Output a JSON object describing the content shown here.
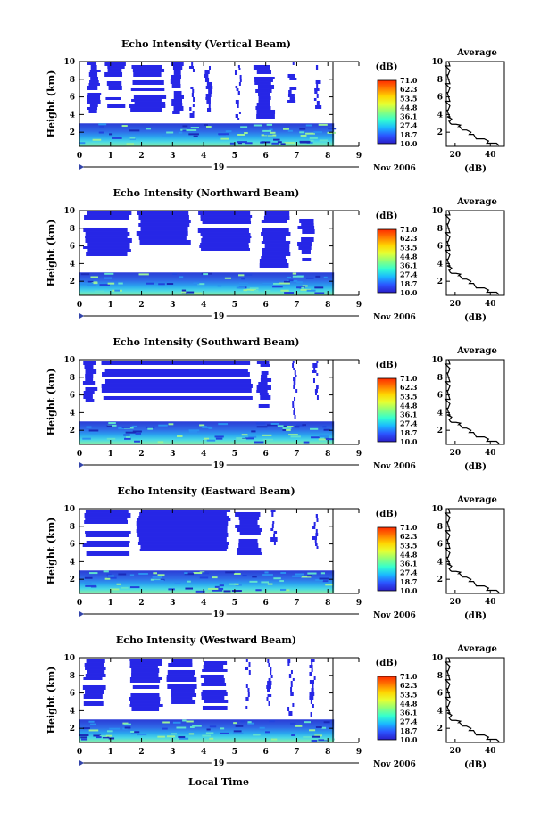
{
  "figure": {
    "colorbar_unit": "(dB)",
    "colorbar_ticks": [
      "71.0",
      "62.3",
      "53.5",
      "44.8",
      "36.1",
      "27.4",
      "18.7",
      "10.0"
    ],
    "colorbar_colors": [
      "#ff2a00",
      "#ff7a00",
      "#ffd400",
      "#e6ff33",
      "#8cff7a",
      "#33ffd0",
      "#1ab8ff",
      "#2b54ff",
      "#2a1ec8"
    ],
    "date_label": "Nov 2006",
    "day_label": "19",
    "xlabel": "Local Time",
    "colors": {
      "weak_echo": "#2626e6",
      "axis": "#000000"
    }
  },
  "chart_data": [
    {
      "type": "heatmap",
      "title": "Echo Intensity (Vertical Beam)",
      "ylabel": "Height (km)",
      "x_ticks": [
        "0",
        "1",
        "2",
        "3",
        "4",
        "5",
        "6",
        "7",
        "8",
        "9"
      ],
      "y_ticks": [
        "2",
        "4",
        "6",
        "8",
        "10"
      ],
      "xlim": [
        0,
        9
      ],
      "ylim": [
        0.4,
        10
      ],
      "boundary_layer_top_km": 3.0,
      "echo_columns": [
        [
          0.2,
          0.7
        ],
        [
          0.8,
          1.5
        ],
        [
          1.6,
          2.8
        ],
        [
          2.9,
          3.4
        ],
        [
          3.5,
          3.7
        ],
        [
          4.0,
          4.3
        ],
        [
          5.0,
          5.2
        ],
        [
          5.6,
          6.3
        ],
        [
          6.7,
          7.0
        ],
        [
          7.5,
          7.8
        ]
      ],
      "average_profile": {
        "title": "Average",
        "xlabel": "(dB)",
        "x_ticks": [
          "20",
          "40"
        ],
        "xlim": [
          15,
          48
        ],
        "y_ticks": [
          "2",
          "4",
          "6",
          "8",
          "10"
        ],
        "ylim": [
          0.4,
          10
        ],
        "height_km": [
          0.5,
          1.0,
          1.5,
          2.0,
          2.5,
          2.8,
          3.0,
          3.5,
          4.0,
          5.0,
          6.0,
          7.0,
          8.0,
          9.0,
          10.0
        ],
        "db": [
          45,
          38,
          32,
          28,
          24,
          22,
          18,
          17,
          17,
          16,
          17,
          16,
          17,
          16,
          17
        ]
      }
    },
    {
      "type": "heatmap",
      "title": "Echo Intensity (Northward Beam)",
      "ylabel": "Height (km)",
      "x_ticks": [
        "0",
        "1",
        "2",
        "3",
        "4",
        "5",
        "6",
        "7",
        "8",
        "9"
      ],
      "y_ticks": [
        "2",
        "4",
        "6",
        "8",
        "10"
      ],
      "xlim": [
        0,
        9
      ],
      "ylim": [
        0.4,
        10
      ],
      "boundary_layer_top_km": 3.0,
      "echo_columns": [
        [
          0.1,
          1.7
        ],
        [
          1.8,
          3.6
        ],
        [
          3.8,
          5.6
        ],
        [
          5.8,
          6.8
        ],
        [
          7.0,
          7.6
        ]
      ],
      "average_profile": {
        "title": "Average",
        "xlabel": "(dB)",
        "x_ticks": [
          "20",
          "40"
        ],
        "xlim": [
          15,
          48
        ],
        "y_ticks": [
          "2",
          "4",
          "6",
          "8",
          "10"
        ],
        "ylim": [
          0.4,
          10
        ],
        "height_km": [
          0.5,
          1.0,
          1.5,
          2.0,
          2.5,
          2.8,
          3.0,
          3.5,
          4.0,
          5.0,
          6.0,
          7.0,
          8.0,
          9.0,
          10.0
        ],
        "db": [
          45,
          38,
          32,
          28,
          24,
          22,
          18,
          17,
          17,
          16,
          17,
          16,
          17,
          16,
          17
        ]
      }
    },
    {
      "type": "heatmap",
      "title": "Echo Intensity (Southward Beam)",
      "ylabel": "Height (km)",
      "x_ticks": [
        "0",
        "1",
        "2",
        "3",
        "4",
        "5",
        "6",
        "7",
        "8",
        "9"
      ],
      "y_ticks": [
        "2",
        "4",
        "6",
        "8",
        "10"
      ],
      "xlim": [
        0,
        9
      ],
      "ylim": [
        0.4,
        10
      ],
      "boundary_layer_top_km": 3.0,
      "echo_columns": [
        [
          0.1,
          0.6
        ],
        [
          0.7,
          5.6
        ],
        [
          5.7,
          6.2
        ],
        [
          6.8,
          7.0
        ],
        [
          7.5,
          7.7
        ]
      ],
      "average_profile": {
        "title": "Average",
        "xlabel": "(dB)",
        "x_ticks": [
          "20",
          "40"
        ],
        "xlim": [
          15,
          48
        ],
        "y_ticks": [
          "2",
          "4",
          "6",
          "8",
          "10"
        ],
        "ylim": [
          0.4,
          10
        ],
        "height_km": [
          0.5,
          1.0,
          1.5,
          2.0,
          2.5,
          2.8,
          3.0,
          3.5,
          4.0,
          5.0,
          6.0,
          7.0,
          8.0,
          9.0,
          10.0
        ],
        "db": [
          45,
          38,
          32,
          28,
          24,
          22,
          18,
          17,
          17,
          16,
          17,
          16,
          17,
          16,
          17
        ]
      }
    },
    {
      "type": "heatmap",
      "title": "Echo Intensity (Eastward Beam)",
      "ylabel": "Height (km)",
      "x_ticks": [
        "0",
        "1",
        "2",
        "3",
        "4",
        "5",
        "6",
        "7",
        "8",
        "9"
      ],
      "y_ticks": [
        "2",
        "4",
        "6",
        "8",
        "10"
      ],
      "xlim": [
        0,
        9
      ],
      "ylim": [
        0.4,
        10
      ],
      "boundary_layer_top_km": 3.0,
      "echo_columns": [
        [
          0.1,
          1.7
        ],
        [
          1.8,
          4.9
        ],
        [
          5.0,
          5.9
        ],
        [
          6.1,
          6.4
        ],
        [
          7.5,
          7.7
        ]
      ],
      "average_profile": {
        "title": "Average",
        "xlabel": "(dB)",
        "x_ticks": [
          "20",
          "40"
        ],
        "xlim": [
          15,
          48
        ],
        "y_ticks": [
          "2",
          "4",
          "6",
          "8",
          "10"
        ],
        "ylim": [
          0.4,
          10
        ],
        "height_km": [
          0.5,
          1.0,
          1.5,
          2.0,
          2.5,
          2.8,
          3.0,
          3.5,
          4.0,
          5.0,
          6.0,
          7.0,
          8.0,
          9.0,
          10.0
        ],
        "db": [
          45,
          38,
          32,
          28,
          24,
          22,
          18,
          17,
          17,
          16,
          17,
          16,
          17,
          16,
          17
        ]
      }
    },
    {
      "type": "heatmap",
      "title": "Echo Intensity (Westward Beam)",
      "ylabel": "Height (km)",
      "x_ticks": [
        "0",
        "1",
        "2",
        "3",
        "4",
        "5",
        "6",
        "7",
        "8",
        "9"
      ],
      "y_ticks": [
        "2",
        "4",
        "6",
        "8",
        "10"
      ],
      "xlim": [
        0,
        9
      ],
      "ylim": [
        0.4,
        10
      ],
      "boundary_layer_top_km": 3.0,
      "echo_columns": [
        [
          0.1,
          0.9
        ],
        [
          1.6,
          2.7
        ],
        [
          2.8,
          3.8
        ],
        [
          3.9,
          4.8
        ],
        [
          5.3,
          5.5
        ],
        [
          6.0,
          6.2
        ],
        [
          6.7,
          6.9
        ],
        [
          7.4,
          7.6
        ]
      ],
      "average_profile": {
        "title": "Average",
        "xlabel": "(dB)",
        "x_ticks": [
          "20",
          "40"
        ],
        "xlim": [
          15,
          48
        ],
        "y_ticks": [
          "2",
          "4",
          "6",
          "8",
          "10"
        ],
        "ylim": [
          0.4,
          10
        ],
        "height_km": [
          0.5,
          1.0,
          1.5,
          2.0,
          2.5,
          2.8,
          3.0,
          3.5,
          4.0,
          5.0,
          6.0,
          7.0,
          8.0,
          9.0,
          10.0
        ],
        "db": [
          45,
          38,
          32,
          28,
          24,
          22,
          18,
          17,
          17,
          16,
          17,
          16,
          17,
          16,
          17
        ]
      }
    }
  ]
}
